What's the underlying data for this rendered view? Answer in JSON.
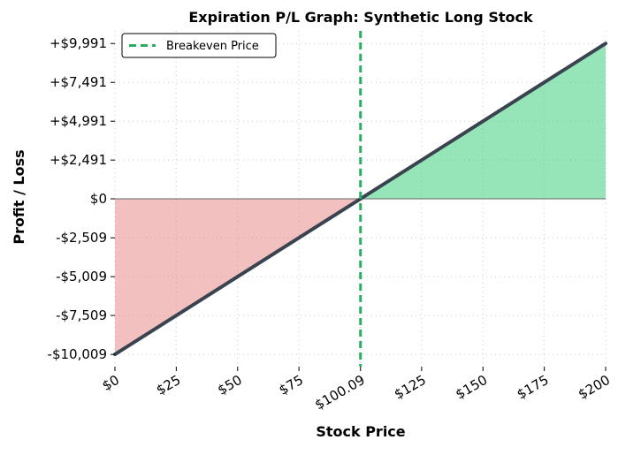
{
  "chart_data": {
    "type": "line",
    "title": "Expiration P/L Graph: Synthetic Long Stock",
    "xlabel": "Stock Price",
    "ylabel": "Profit / Loss",
    "xlim": [
      0,
      200
    ],
    "ylim": [
      -10800,
      10800
    ],
    "x_ticks": [
      {
        "value": 0,
        "label": "$0"
      },
      {
        "value": 25,
        "label": "$25"
      },
      {
        "value": 50,
        "label": "$50"
      },
      {
        "value": 75,
        "label": "$75"
      },
      {
        "value": 100.09,
        "label": "$100.09"
      },
      {
        "value": 125,
        "label": "$125"
      },
      {
        "value": 150,
        "label": "$150"
      },
      {
        "value": 175,
        "label": "$175"
      },
      {
        "value": 200,
        "label": "$200"
      }
    ],
    "y_ticks": [
      {
        "value": 9991,
        "label": "+$9,991"
      },
      {
        "value": 7491,
        "label": "+$7,491"
      },
      {
        "value": 4991,
        "label": "+$4,991"
      },
      {
        "value": 2491,
        "label": "+$2,491"
      },
      {
        "value": 0,
        "label": "$0"
      },
      {
        "value": -2509,
        "label": "-$2,509"
      },
      {
        "value": -5009,
        "label": "-$5,009"
      },
      {
        "value": -7509,
        "label": "-$7,509"
      },
      {
        "value": -10009,
        "label": "-$10,009"
      }
    ],
    "series": [
      {
        "x": [
          0,
          200
        ],
        "y": [
          -10009,
          9991
        ]
      }
    ],
    "breakeven": 100.09,
    "legend": {
      "label": "Breakeven Price",
      "position": "top-left"
    },
    "grid": true,
    "colors": {
      "line": "#3a4350",
      "breakeven": "#27ae60",
      "profit_fill": "#2ecc71",
      "loss_fill": "#e57373",
      "grid": "#cccccc"
    }
  }
}
